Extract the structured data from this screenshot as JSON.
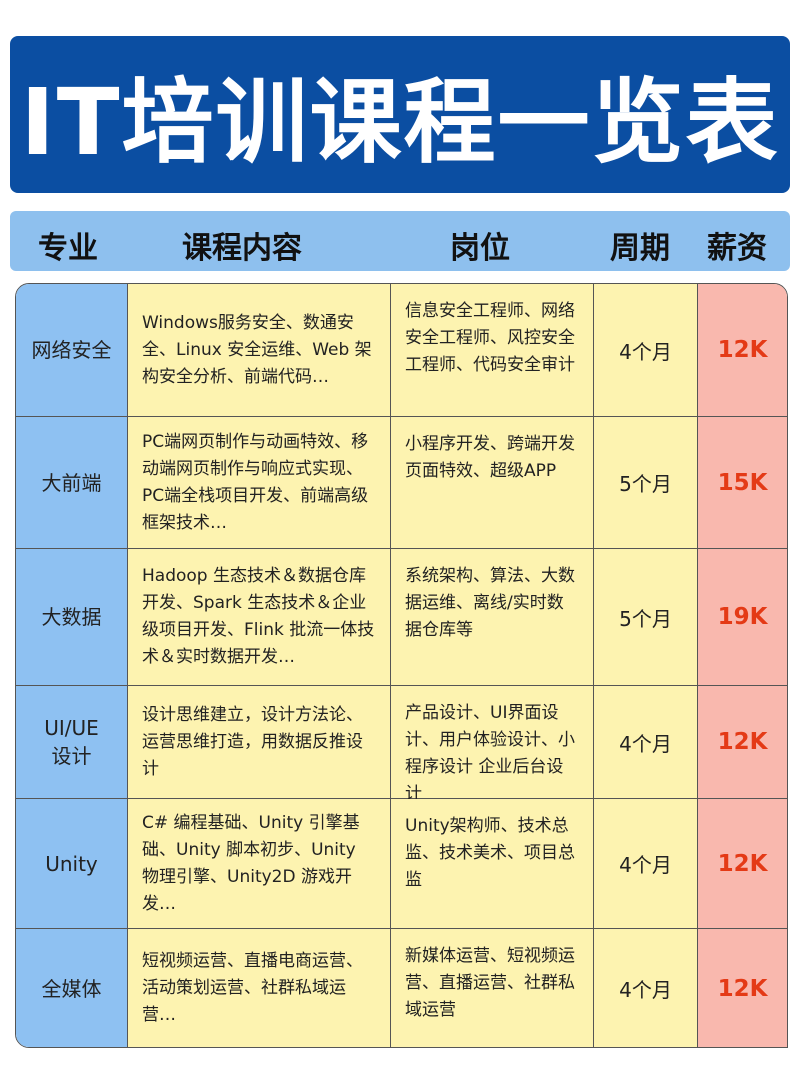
{
  "title": "IT培训课程一览表",
  "headers": [
    "专业",
    "课程内容",
    "岗位",
    "周期",
    "薪资"
  ],
  "colors": {
    "title_bg": "#0b4ea2",
    "header_bg": "#8ec0ee",
    "major_bg": "#8ec1f2",
    "content_bg": "#fdf3b0",
    "salary_bg": "#f9b8ae",
    "salary_text": "#e43a16"
  },
  "rows": [
    {
      "major": "网络安全",
      "content": "Windows服务安全、数通安全、Linux 安全运维、Web 架构安全分析、前端代码…",
      "jobs": "信息安全工程师、网络安全工程师、风控安全工程师、代码安全审计",
      "period": "4个月",
      "salary": "12K"
    },
    {
      "major": "大前端",
      "content": "PC端网页制作与动画特效、移动端网页制作与响应式实现、PC端全栈项目开发、前端高级框架技术…",
      "jobs": "小程序开发、跨端开发页面特效、超级APP",
      "period": "5个月",
      "salary": "15K"
    },
    {
      "major": "大数据",
      "content": "Hadoop 生态技术＆数据仓库开发、Spark 生态技术＆企业级项目开发、Flink 批流一体技术＆实时数据开发…",
      "jobs": "系统架构、算法、大数据运维、离线/实时数据仓库等",
      "period": "5个月",
      "salary": "19K"
    },
    {
      "major": "UI/UE设计",
      "content": "设计思维建立，设计方法论、运营思维打造，用数据反推设计",
      "jobs": "产品设计、UI界面设计、用户体验设计、小程序设计 企业后台设计",
      "period": "4个月",
      "salary": "12K"
    },
    {
      "major": "Unity",
      "content": "C# 编程基础、Unity 引擎基础、Unity 脚本初步、Unity 物理引擎、Unity2D 游戏开发…",
      "jobs": "Unity架构师、技术总监、技术美术、项目总监",
      "period": "4个月",
      "salary": "12K"
    },
    {
      "major": "全媒体",
      "content": "短视频运营、直播电商运营、活动策划运营、社群私域运营…",
      "jobs": "新媒体运营、短视频运营、直播运营、社群私域运营",
      "period": "4个月",
      "salary": "12K"
    }
  ]
}
